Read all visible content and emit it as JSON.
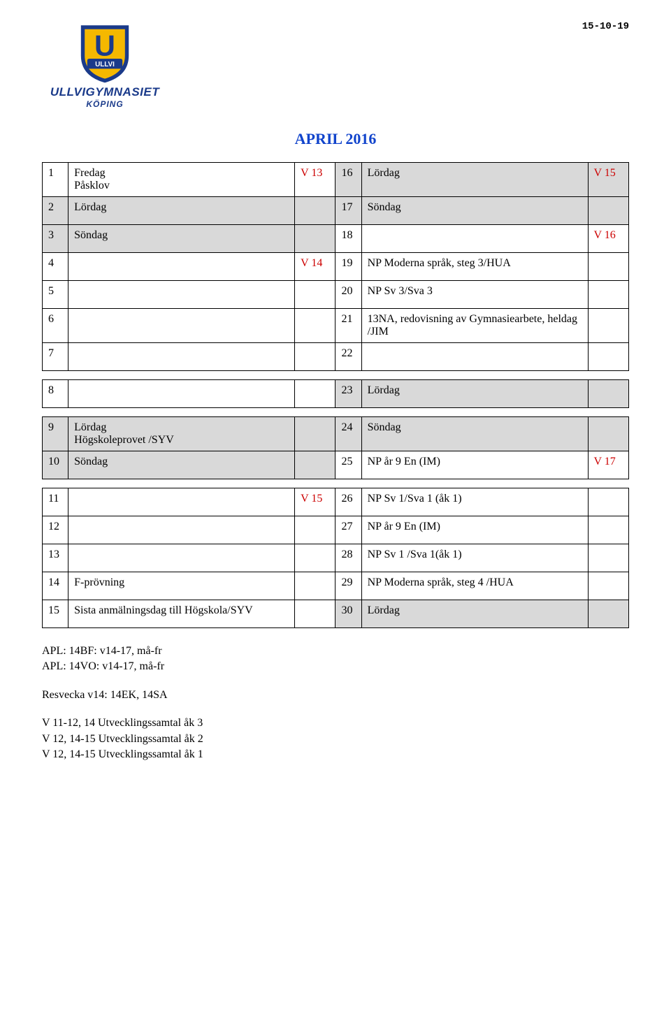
{
  "header": {
    "date_stamp": "15-10-19",
    "logo_main": "ULLVIGYMNASIET",
    "logo_sub": "KÖPING",
    "logo_letter": "U",
    "logo_banner": "ULLVI"
  },
  "title": "APRIL 2016",
  "colors": {
    "title": "#1144cc",
    "accent_red": "#cc0000",
    "shade": "#d9d9d9",
    "logo_blue": "#1a3a8a",
    "logo_gold": "#f5b800"
  },
  "block1": [
    {
      "ln": "1",
      "lt": "Fredag\nPåsklov",
      "lw": "V 13",
      "lw_red": true,
      "rn": "16",
      "rt": "Lördag",
      "rw": "V 15",
      "rw_red": true,
      "ls": false,
      "rs": true
    },
    {
      "ln": "2",
      "lt": "Lördag",
      "lw": "",
      "rn": "17",
      "rt": "Söndag",
      "rw": "",
      "ls": true,
      "rs": true
    },
    {
      "ln": "3",
      "lt": "Söndag",
      "lw": "",
      "rn": "18",
      "rt": "",
      "rw": "V 16",
      "rw_red": true,
      "ls": true,
      "rs": false
    },
    {
      "ln": "4",
      "lt": "",
      "lw": "V 14",
      "lw_red": true,
      "rn": "19",
      "rt": "NP Moderna språk, steg 3/HUA",
      "rw": "",
      "ls": false,
      "rs": false
    },
    {
      "ln": "5",
      "lt": "",
      "lw": "",
      "rn": "20",
      "rt": "NP Sv 3/Sva 3",
      "rw": "",
      "ls": false,
      "rs": false
    },
    {
      "ln": "6",
      "lt": "",
      "lw": "",
      "rn": "21",
      "rt": "13NA, redovisning av Gymnasiearbete, heldag\n/JIM",
      "rw": "",
      "ls": false,
      "rs": false
    },
    {
      "ln": "7",
      "lt": "",
      "lw": "",
      "rn": "22",
      "rt": "",
      "rw": "",
      "ls": false,
      "rs": false
    }
  ],
  "block2": [
    {
      "ln": "8",
      "lt": "",
      "lw": "",
      "rn": "23",
      "rt": "Lördag",
      "rw": "",
      "ls": false,
      "rs": true
    }
  ],
  "block3": [
    {
      "ln": "9",
      "lt": "Lördag\nHögskoleprovet /SYV",
      "lw": "",
      "rn": "24",
      "rt": "Söndag",
      "rw": "",
      "ls": true,
      "rs": true
    },
    {
      "ln": "10",
      "lt": "Söndag",
      "lw": "",
      "rn": "25",
      "rt": "NP år 9 En (IM)",
      "rw": "V 17",
      "rw_red": true,
      "ls": true,
      "rs": false
    }
  ],
  "block4": [
    {
      "ln": "11",
      "lt": "",
      "lw": "V 15",
      "lw_red": true,
      "rn": "26",
      "rt": "NP Sv 1/Sva 1 (åk 1)",
      "rw": "",
      "ls": false,
      "rs": false
    },
    {
      "ln": "12",
      "lt": "",
      "lw": "",
      "rn": "27",
      "rt": "NP år 9 En (IM)",
      "rw": "",
      "ls": false,
      "rs": false
    },
    {
      "ln": "13",
      "lt": "",
      "lw": "",
      "rn": "28",
      "rt": "NP Sv 1 /Sva 1(åk 1)",
      "rw": "",
      "ls": false,
      "rs": false
    },
    {
      "ln": "14",
      "lt": "F-prövning",
      "lw": "",
      "rn": "29",
      "rt": "NP Moderna språk, steg 4 /HUA",
      "rw": "",
      "ls": false,
      "rs": false
    },
    {
      "ln": "15",
      "lt": "Sista anmälningsdag till Högskola/SYV",
      "lw": "",
      "rn": "30",
      "rt": "Lördag",
      "rw": "",
      "ls": false,
      "rs": true
    }
  ],
  "notes": [
    "APL: 14BF: v14-17, må-fr",
    "APL: 14VO: v14-17, må-fr",
    "",
    "Resvecka v14: 14EK, 14SA",
    "",
    "",
    "V 11-12, 14 Utvecklingssamtal åk 3",
    "V 12, 14-15 Utvecklingssamtal åk 2",
    "V 12, 14-15 Utvecklingssamtal åk 1"
  ]
}
